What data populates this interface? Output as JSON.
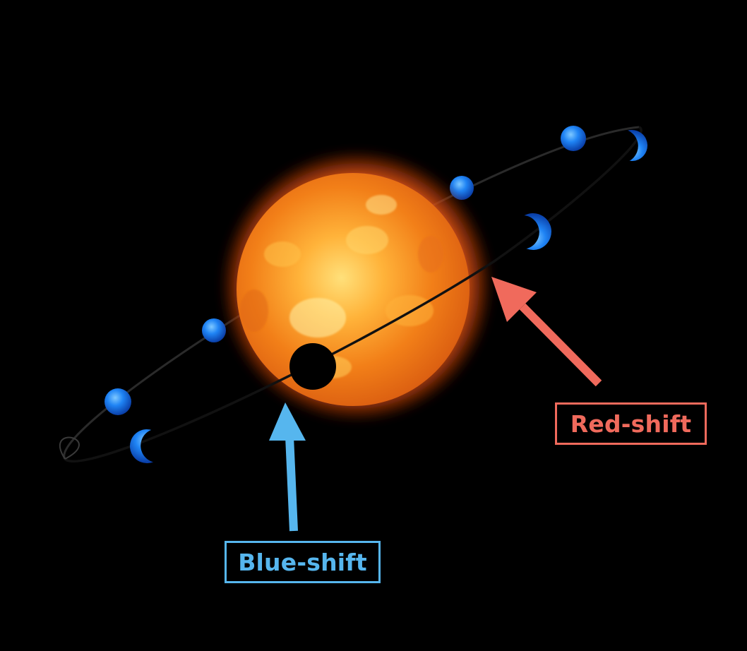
{
  "diagram": {
    "labels": {
      "red_shift": "Red-shift",
      "blue_shift": "Blue-shift"
    },
    "colors": {
      "background": "#000000",
      "red_shift": "#f06a5c",
      "blue_shift": "#56b6ee",
      "star_core": "#f28b1c",
      "star_glow": "#c8450c",
      "planet": "#1f78f0",
      "orbit_line": "#2a2a2a"
    },
    "star": "sun-like star",
    "planet_positions_drawn": 9
  }
}
